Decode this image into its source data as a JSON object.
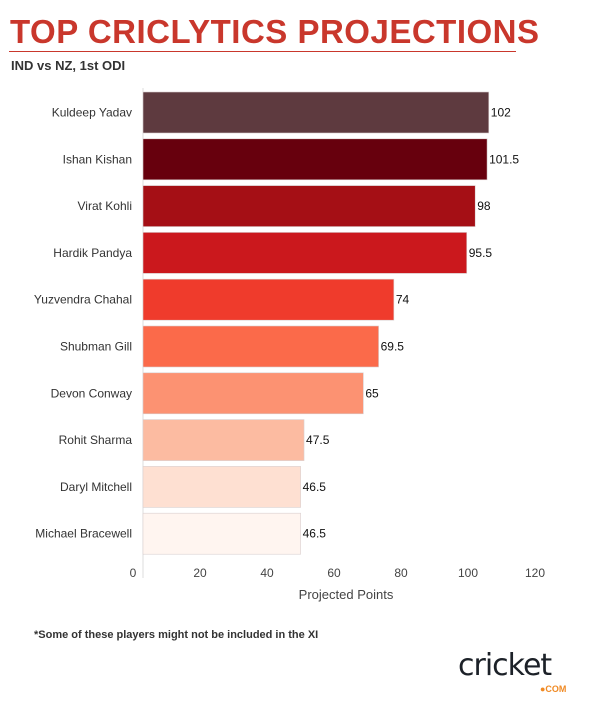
{
  "header": {
    "title": "TOP CRICLYTICS PROJECTIONS",
    "subtitle": "IND vs NZ, 1st ODI"
  },
  "footer": {
    "note": "*Some of these players might not be included in the XI",
    "logo_text": "cricket",
    "logo_suffix": "●COM"
  },
  "chart_data": {
    "type": "bar",
    "orientation": "horizontal",
    "categories": [
      "Kuldeep Yadav",
      "Ishan Kishan",
      "Virat Kohli",
      "Hardik Pandya",
      "Yuzvendra Chahal",
      "Shubman Gill",
      "Devon Conway",
      "Rohit Sharma",
      "Daryl Mitchell",
      "Michael Bracewell"
    ],
    "values": [
      102,
      101.5,
      98,
      95.5,
      74,
      69.5,
      65,
      47.5,
      46.5,
      46.5
    ],
    "data_labels": [
      "102",
      "101.5",
      "98",
      "95.5",
      "74",
      "69.5",
      "65",
      "47.5",
      "46.5",
      "46.5"
    ],
    "colors": [
      "#5e3a3f",
      "#67000d",
      "#a50f15",
      "#cb181d",
      "#ef3b2c",
      "#fb6a4a",
      "#fc9272",
      "#fcbba1",
      "#fee0d2",
      "#fff5f0"
    ],
    "xlabel": "Projected Points",
    "xticks": [
      "0",
      "20",
      "40",
      "60",
      "80",
      "100",
      "120"
    ],
    "xlim": [
      0,
      120
    ],
    "grid": false
  }
}
